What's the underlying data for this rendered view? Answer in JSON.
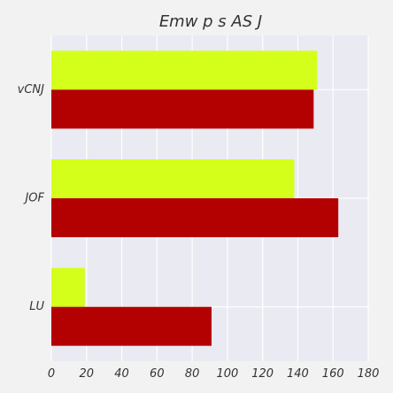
{
  "chart_data": {
    "type": "bar",
    "orientation": "horizontal",
    "title": "Emw p s  AS J",
    "xlabel": "",
    "ylabel": "",
    "categories": [
      "vCNJ",
      "JOF",
      "LU"
    ],
    "series": [
      {
        "values": [
          151,
          138,
          19
        ],
        "color": "#d4ff1a"
      },
      {
        "values": [
          149,
          163,
          91
        ],
        "color": "#b30000"
      }
    ],
    "xlim": [
      0,
      180
    ],
    "xticks": [
      0,
      20,
      40,
      60,
      80,
      100,
      120,
      140,
      160,
      180
    ],
    "grid": true,
    "legend": "none",
    "plot_background": "#eaeaf2",
    "figure_background": "#f2f2f2"
  }
}
